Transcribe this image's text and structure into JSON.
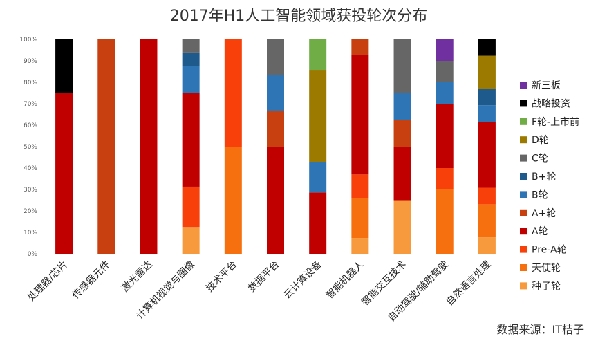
{
  "chart_data": {
    "type": "bar",
    "stacked": true,
    "percent": true,
    "title": "2017年H1人工智能领域获投轮次分布",
    "source": "数据来源：IT桔子",
    "y_ticks": [
      "0%",
      "10%",
      "20%",
      "30%",
      "40%",
      "50%",
      "60%",
      "70%",
      "80%",
      "90%",
      "100%"
    ],
    "ylim": [
      0,
      100
    ],
    "grid": false,
    "legend_position": "right",
    "categories": [
      "处理器/芯片",
      "传感器元件",
      "激光雷达",
      "计算机视觉与图像",
      "技术平台",
      "数据平台",
      "云计算设备",
      "智能机器人",
      "智能交互技术",
      "自动驾驶/辅助驾驶",
      "自然语言处理"
    ],
    "series": [
      {
        "name": "种子轮",
        "color": "#F79A3D",
        "values": [
          0,
          0,
          0,
          12.5,
          0,
          0,
          0,
          7.4,
          25,
          0,
          7.7
        ]
      },
      {
        "name": "天使轮",
        "color": "#F7700F",
        "values": [
          0,
          0,
          0,
          0,
          50,
          0,
          0,
          18.5,
          0,
          30,
          15.4
        ]
      },
      {
        "name": "Pre-A轮",
        "color": "#F8400A",
        "values": [
          0,
          0,
          0,
          18.8,
          50,
          0,
          0,
          11.1,
          0,
          10,
          7.7
        ]
      },
      {
        "name": "A轮",
        "color": "#C00000",
        "values": [
          75,
          0,
          100,
          43.8,
          0,
          50,
          28.6,
          55.6,
          25,
          30,
          30.8
        ]
      },
      {
        "name": "A+轮",
        "color": "#C94010",
        "values": [
          0,
          100,
          0,
          0,
          0,
          16.7,
          0,
          7.4,
          12.5,
          0,
          0
        ]
      },
      {
        "name": "B轮",
        "color": "#2E75B6",
        "values": [
          0,
          0,
          0,
          12.5,
          0,
          16.7,
          14.3,
          0,
          12.5,
          10,
          7.7
        ]
      },
      {
        "name": "B+轮",
        "color": "#1F5A8C",
        "values": [
          0,
          0,
          0,
          6.3,
          0,
          0,
          0,
          0,
          0,
          0,
          7.7
        ]
      },
      {
        "name": "C轮",
        "color": "#666666",
        "values": [
          0,
          0,
          0,
          6.3,
          0,
          16.7,
          0,
          0,
          25,
          10,
          0
        ]
      },
      {
        "name": "D轮",
        "color": "#9C7A00",
        "values": [
          0,
          0,
          0,
          0,
          0,
          0,
          42.9,
          0,
          0,
          0,
          15.4
        ]
      },
      {
        "name": "F轮-上市前",
        "color": "#70AD47",
        "values": [
          0,
          0,
          0,
          0,
          0,
          0,
          14.3,
          0,
          0,
          0,
          0
        ]
      },
      {
        "name": "战略投资",
        "color": "#000000",
        "values": [
          25,
          0,
          0,
          0,
          0,
          0,
          0,
          0,
          0,
          0,
          7.7
        ]
      },
      {
        "name": "新三板",
        "color": "#7030A0",
        "values": [
          0,
          0,
          0,
          0,
          0,
          0,
          0,
          0,
          0,
          10,
          0
        ]
      }
    ]
  }
}
